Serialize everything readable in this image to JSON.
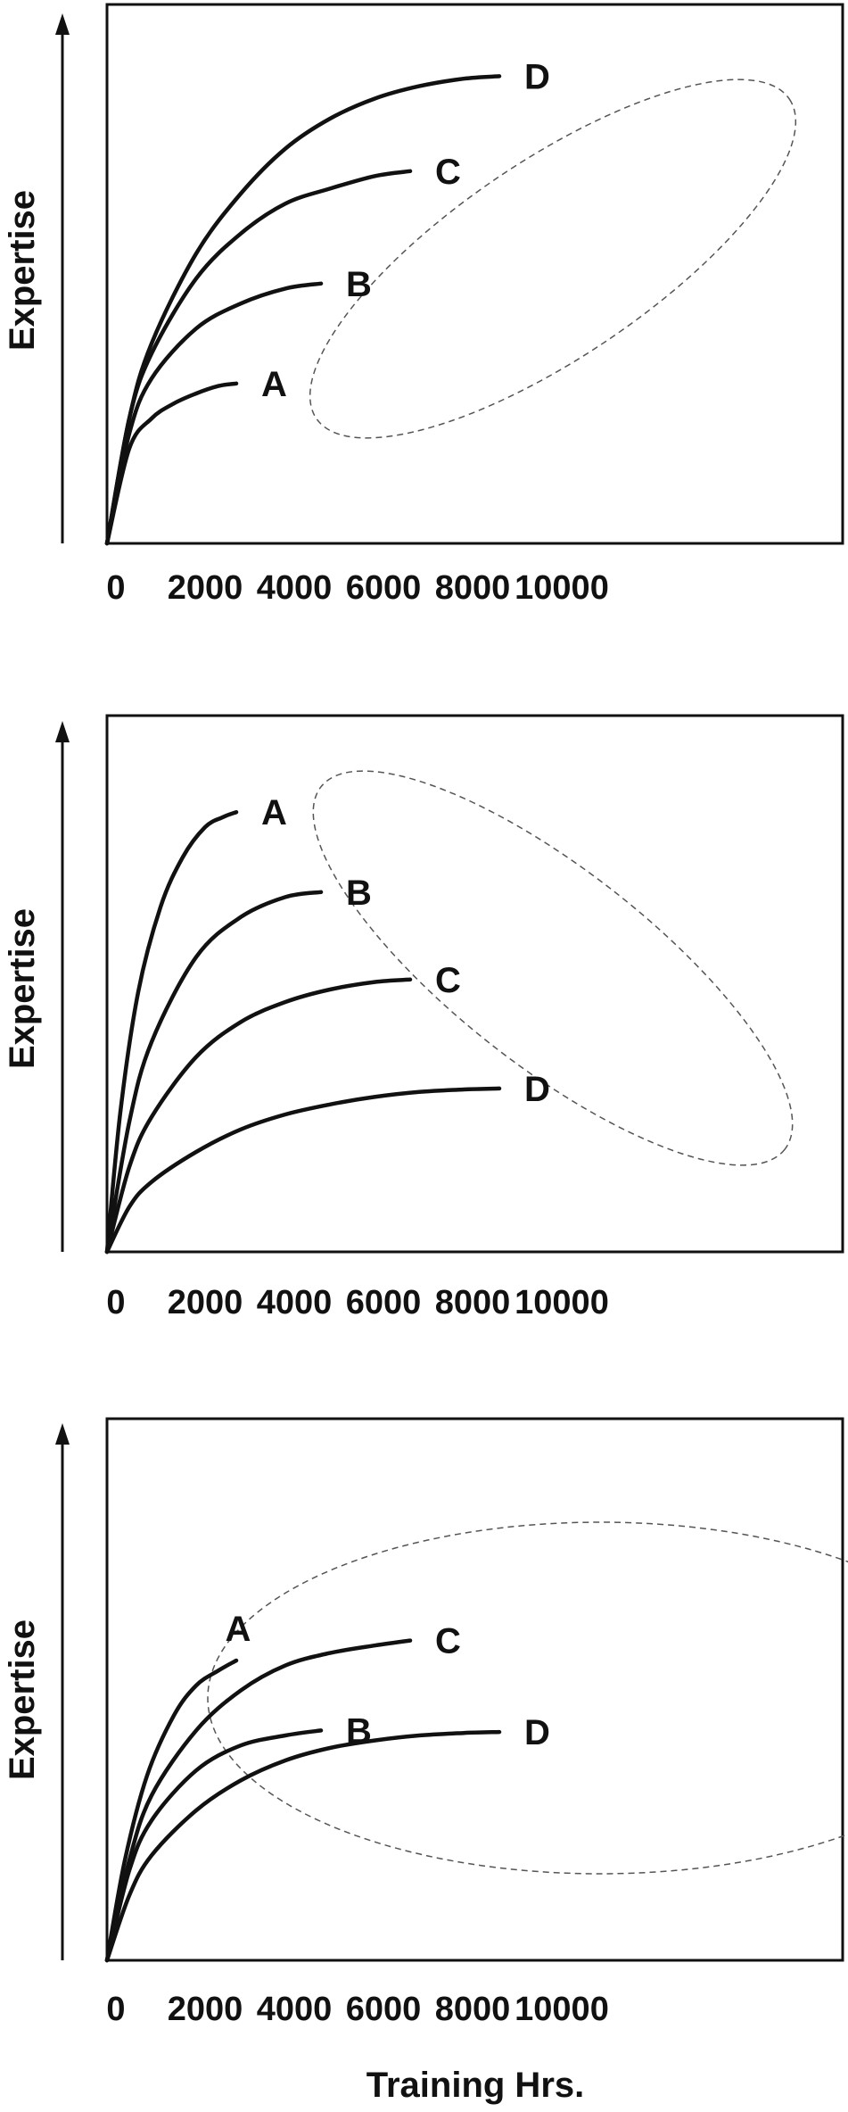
{
  "chart_data": [
    {
      "type": "line",
      "title": "",
      "ylabel": "Expertise",
      "xlabel": "",
      "xlim": [
        0,
        10000
      ],
      "ylim": [
        0,
        1
      ],
      "x_ticks": [
        0,
        2000,
        4000,
        6000,
        8000,
        10000
      ],
      "grid": false,
      "axes_arrows": true,
      "series": [
        {
          "name": "A",
          "points": [
            [
              0,
              0
            ],
            [
              500,
              0.19
            ],
            [
              1000,
              0.25
            ],
            [
              1500,
              0.28
            ],
            [
              2000,
              0.3
            ],
            [
              2500,
              0.315
            ],
            [
              2900,
              0.32
            ]
          ]
        },
        {
          "name": "B",
          "points": [
            [
              0,
              0
            ],
            [
              500,
              0.22
            ],
            [
              1000,
              0.33
            ],
            [
              2000,
              0.43
            ],
            [
              3000,
              0.48
            ],
            [
              4000,
              0.51
            ],
            [
              4800,
              0.52
            ]
          ]
        },
        {
          "name": "C",
          "points": [
            [
              0,
              0
            ],
            [
              500,
              0.25
            ],
            [
              1000,
              0.38
            ],
            [
              2000,
              0.53
            ],
            [
              3000,
              0.62
            ],
            [
              4000,
              0.68
            ],
            [
              5000,
              0.71
            ],
            [
              6000,
              0.735
            ],
            [
              6800,
              0.745
            ]
          ]
        },
        {
          "name": "D",
          "points": [
            [
              0,
              0
            ],
            [
              500,
              0.25
            ],
            [
              1000,
              0.4
            ],
            [
              2000,
              0.58
            ],
            [
              3000,
              0.7
            ],
            [
              4000,
              0.79
            ],
            [
              5000,
              0.85
            ],
            [
              6000,
              0.89
            ],
            [
              7000,
              0.915
            ],
            [
              8000,
              0.93
            ],
            [
              8800,
              0.935
            ]
          ]
        }
      ],
      "annotation": {
        "shape": "dashed-ellipse",
        "encloses": "curve endpoints A-D"
      }
    },
    {
      "type": "line",
      "title": "",
      "ylabel": "Expertise",
      "xlabel": "",
      "xlim": [
        0,
        10000
      ],
      "ylim": [
        0,
        1
      ],
      "x_ticks": [
        0,
        2000,
        4000,
        6000,
        8000,
        10000
      ],
      "grid": false,
      "axes_arrows": true,
      "series": [
        {
          "name": "A",
          "points": [
            [
              0,
              0
            ],
            [
              300,
              0.28
            ],
            [
              700,
              0.52
            ],
            [
              1200,
              0.69
            ],
            [
              1700,
              0.79
            ],
            [
              2200,
              0.85
            ],
            [
              2600,
              0.87
            ],
            [
              2900,
              0.88
            ]
          ]
        },
        {
          "name": "B",
          "points": [
            [
              0,
              0
            ],
            [
              500,
              0.26
            ],
            [
              1000,
              0.42
            ],
            [
              2000,
              0.59
            ],
            [
              3000,
              0.67
            ],
            [
              4000,
              0.71
            ],
            [
              4800,
              0.72
            ]
          ]
        },
        {
          "name": "C",
          "points": [
            [
              0,
              0
            ],
            [
              500,
              0.17
            ],
            [
              1000,
              0.27
            ],
            [
              2000,
              0.39
            ],
            [
              3000,
              0.46
            ],
            [
              4000,
              0.5
            ],
            [
              5000,
              0.525
            ],
            [
              6000,
              0.54
            ],
            [
              6800,
              0.545
            ]
          ]
        },
        {
          "name": "D",
          "points": [
            [
              0,
              0
            ],
            [
              500,
              0.09
            ],
            [
              1000,
              0.14
            ],
            [
              2000,
              0.2
            ],
            [
              3000,
              0.245
            ],
            [
              4000,
              0.275
            ],
            [
              5000,
              0.295
            ],
            [
              6000,
              0.31
            ],
            [
              7000,
              0.32
            ],
            [
              8000,
              0.325
            ],
            [
              8800,
              0.327
            ]
          ]
        }
      ],
      "annotation": {
        "shape": "dashed-ellipse",
        "encloses": "curve endpoints A-D"
      }
    },
    {
      "type": "line",
      "title": "",
      "ylabel": "Expertise",
      "xlabel": "Training Hrs.",
      "xlim": [
        0,
        10000
      ],
      "ylim": [
        0,
        1
      ],
      "x_ticks": [
        0,
        2000,
        4000,
        6000,
        8000,
        10000
      ],
      "grid": false,
      "axes_arrows": true,
      "series": [
        {
          "name": "A",
          "points": [
            [
              0,
              0
            ],
            [
              400,
              0.2
            ],
            [
              900,
              0.37
            ],
            [
              1500,
              0.49
            ],
            [
              2000,
              0.55
            ],
            [
              2500,
              0.58
            ],
            [
              2900,
              0.6
            ]
          ]
        },
        {
          "name": "B",
          "points": [
            [
              0,
              0
            ],
            [
              500,
              0.18
            ],
            [
              1000,
              0.28
            ],
            [
              2000,
              0.38
            ],
            [
              3000,
              0.43
            ],
            [
              4000,
              0.45
            ],
            [
              4800,
              0.46
            ]
          ]
        },
        {
          "name": "C",
          "points": [
            [
              0,
              0
            ],
            [
              500,
              0.2
            ],
            [
              1000,
              0.33
            ],
            [
              2000,
              0.46
            ],
            [
              3000,
              0.54
            ],
            [
              4000,
              0.59
            ],
            [
              5000,
              0.615
            ],
            [
              6000,
              0.63
            ],
            [
              6800,
              0.64
            ]
          ]
        },
        {
          "name": "D",
          "points": [
            [
              0,
              0
            ],
            [
              500,
              0.13
            ],
            [
              1000,
              0.21
            ],
            [
              2000,
              0.3
            ],
            [
              3000,
              0.36
            ],
            [
              4000,
              0.4
            ],
            [
              5000,
              0.425
            ],
            [
              6000,
              0.44
            ],
            [
              7000,
              0.45
            ],
            [
              8000,
              0.455
            ],
            [
              8800,
              0.457
            ]
          ]
        }
      ],
      "annotation": {
        "shape": "dashed-ellipse",
        "encloses": "curve endpoints A-D"
      }
    }
  ]
}
